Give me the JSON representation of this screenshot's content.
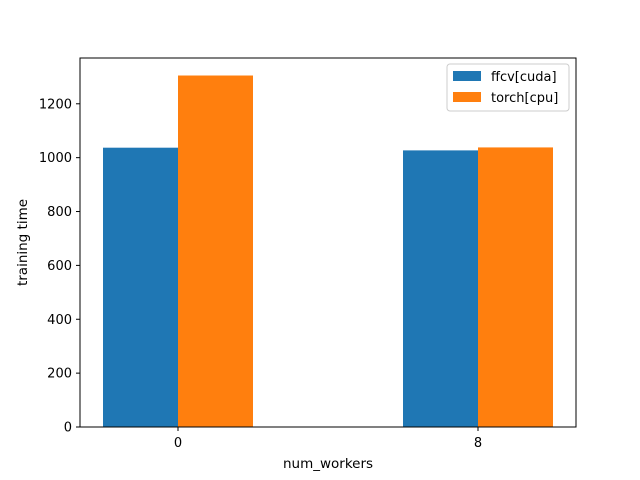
{
  "chart_data": {
    "type": "bar",
    "categories": [
      "0",
      "8"
    ],
    "series": [
      {
        "name": "ffcv[cuda]",
        "values": [
          1037,
          1027
        ],
        "color": "#1f77b4"
      },
      {
        "name": "torch[cpu]",
        "values": [
          1305,
          1038
        ],
        "color": "#ff7f0e"
      }
    ],
    "xlabel": "num_workers",
    "ylabel": "training time",
    "ylim": [
      0,
      1370
    ],
    "yticks": [
      0,
      200,
      400,
      600,
      800,
      1000,
      1200
    ],
    "grid": false,
    "legend_position": "top-right"
  }
}
